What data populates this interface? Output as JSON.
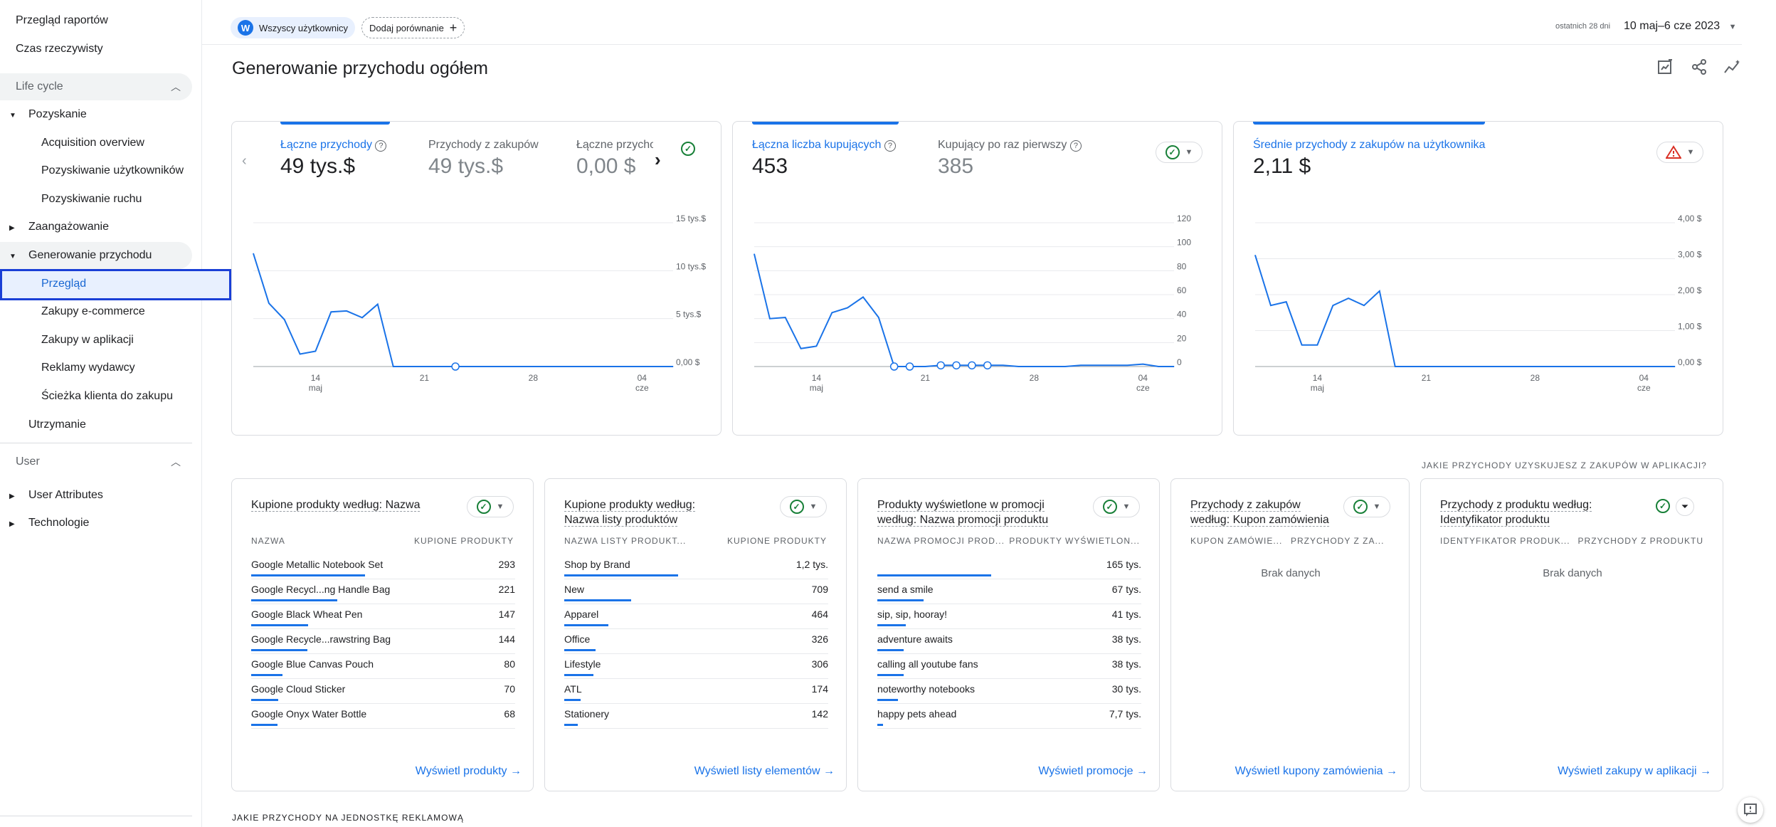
{
  "sidebar": {
    "top_items": [
      "Przegląd raportów",
      "Czas rzeczywisty"
    ],
    "lifecycle_title": "Life cycle",
    "pozyskanie": "Pozyskanie",
    "acq": [
      "Acquisition overview",
      "Pozyskiwanie użytkowników",
      "Pozyskiwanie ruchu"
    ],
    "zaangazowanie": "Zaangażowanie",
    "generowanie": "Generowanie przychodu",
    "gen_items": [
      "Przegląd",
      "Zakupy e-commerce",
      "Zakupy w aplikacji",
      "Reklamy wydawcy",
      "Ścieżka klienta do zakupu"
    ],
    "utrzymanie": "Utrzymanie",
    "user_title": "User",
    "user_attributes": "User Attributes",
    "technologie": "Technologie"
  },
  "header": {
    "avatar": "W",
    "segment": "Wszyscy użytkownicy",
    "compare": "Dodaj porównanie",
    "range_label": "ostatnich 28 dni",
    "range": "10 maj–6 cze 2023",
    "title": "Generowanie przychodu ogółem"
  },
  "card1": {
    "m1_label": "Łączne przychody",
    "m1_val": "49 tys.$",
    "m2_label": "Przychody z zakupów",
    "m2_val": "49 tys.$",
    "m3_label": "Łączne przychody",
    "m3_val": "0,00 $"
  },
  "card2": {
    "m1_label": "Łączna liczba kupujących",
    "m1_val": "453",
    "m2_label": "Kupujący po raz pierwszy",
    "m2_val": "385"
  },
  "card3": {
    "m1_label": "Średnie przychody z zakupów na użytkownika",
    "m1_val": "2,11 $"
  },
  "chart_data": [
    {
      "type": "line",
      "title": "Łączne przychody",
      "x": [
        "10 maj",
        "11",
        "12",
        "13",
        "14",
        "15",
        "16",
        "17",
        "18",
        "19",
        "20",
        "21",
        "22",
        "23",
        "24",
        "25",
        "26",
        "27",
        "28",
        "29",
        "30",
        "31",
        "01",
        "02",
        "03",
        "04",
        "05",
        "06 cze"
      ],
      "x_ticks": [
        [
          "14",
          "maj"
        ],
        [
          "21",
          ""
        ],
        [
          "28",
          ""
        ],
        [
          "04",
          "cze"
        ]
      ],
      "values": [
        11800,
        6600,
        4900,
        1300,
        1600,
        5700,
        5800,
        5100,
        6500,
        0,
        0,
        0,
        0,
        0,
        0,
        0,
        0,
        0,
        0,
        0,
        0,
        0,
        0,
        0,
        0,
        0,
        0,
        0
      ],
      "y_ticks": [
        "0,00 $",
        "5 tys.$",
        "10 tys.$",
        "15 tys.$"
      ],
      "ylim": [
        0,
        15000
      ],
      "markers": [
        13
      ]
    },
    {
      "type": "line",
      "title": "Łączna liczba kupujących",
      "x_ticks": [
        [
          "14",
          "maj"
        ],
        [
          "21",
          ""
        ],
        [
          "28",
          ""
        ],
        [
          "04",
          "cze"
        ]
      ],
      "values": [
        94,
        40,
        41,
        15,
        17,
        45,
        49,
        58,
        41,
        0,
        0,
        0,
        1,
        1,
        1,
        1,
        1,
        0,
        0,
        0,
        0,
        1,
        1,
        1,
        1,
        2,
        0,
        0
      ],
      "y_ticks": [
        "0",
        "20",
        "40",
        "60",
        "80",
        "100",
        "120"
      ],
      "ylim": [
        0,
        120
      ],
      "markers": [
        9,
        10,
        12,
        13,
        14,
        15
      ]
    },
    {
      "type": "line",
      "title": "Średnie przychody z zakupów na użytkownika",
      "x_ticks": [
        [
          "14",
          "maj"
        ],
        [
          "21",
          ""
        ],
        [
          "28",
          ""
        ],
        [
          "04",
          "cze"
        ]
      ],
      "values": [
        3.1,
        1.7,
        1.8,
        0.6,
        0.6,
        1.7,
        1.9,
        1.7,
        2.1,
        0,
        0,
        0,
        0,
        0,
        0,
        0,
        0,
        0,
        0,
        0,
        0,
        0,
        0,
        0,
        0,
        0,
        0,
        0
      ],
      "y_ticks": [
        "0,00 $",
        "1,00 $",
        "2,00 $",
        "3,00 $",
        "4,00 $"
      ],
      "ylim": [
        0,
        4
      ],
      "markers": []
    }
  ],
  "tables": {
    "products": {
      "title": "Kupione produkty według: Nazwa",
      "col1": "NAZWA",
      "col2": "KUPIONE PRODUKTY",
      "rows": [
        {
          "k": "Google Metallic Notebook Set",
          "v": "293",
          "f": 1.0
        },
        {
          "k": "Google Recycl...ng Handle Bag",
          "v": "221",
          "f": 0.754
        },
        {
          "k": "Google Black Wheat Pen",
          "v": "147",
          "f": 0.502
        },
        {
          "k": "Google Recycle...rawstring Bag",
          "v": "144",
          "f": 0.491
        },
        {
          "k": "Google Blue Canvas Pouch",
          "v": "80",
          "f": 0.273
        },
        {
          "k": "Google Cloud Sticker",
          "v": "70",
          "f": 0.239
        },
        {
          "k": "Google Onyx Water Bottle",
          "v": "68",
          "f": 0.232
        }
      ],
      "link": "Wyświetl produkty"
    },
    "lists": {
      "title1": "Kupione produkty według:",
      "title2": "Nazwa listy produktów",
      "col1": "NAZWA LISTY PRODUKT...",
      "col2": "KUPIONE PRODUKTY",
      "rows": [
        {
          "k": "Shop by Brand",
          "v": "1,2 tys.",
          "f": 1.0
        },
        {
          "k": "New",
          "v": "709",
          "f": 0.59
        },
        {
          "k": "Apparel",
          "v": "464",
          "f": 0.387
        },
        {
          "k": "Office",
          "v": "326",
          "f": 0.272
        },
        {
          "k": "Lifestyle",
          "v": "306",
          "f": 0.255
        },
        {
          "k": "ATL",
          "v": "174",
          "f": 0.145
        },
        {
          "k": "Stationery",
          "v": "142",
          "f": 0.118
        }
      ],
      "link": "Wyświetl listy elementów"
    },
    "promos": {
      "title1": "Produkty wyświetlone w promocji",
      "title2": "według: Nazwa promocji produktu",
      "col1": "NAZWA PROMOCJI PROD...",
      "col2": "PRODUKTY WYŚWIETLON...",
      "rows": [
        {
          "k": "",
          "v": "165 tys.",
          "f": 1.0
        },
        {
          "k": "send a smile",
          "v": "67 tys.",
          "f": 0.406
        },
        {
          "k": "sip, sip, hooray!",
          "v": "41 tys.",
          "f": 0.248
        },
        {
          "k": "adventure awaits",
          "v": "38 tys.",
          "f": 0.23
        },
        {
          "k": "calling all youtube fans",
          "v": "38 tys.",
          "f": 0.23
        },
        {
          "k": "noteworthy notebooks",
          "v": "30 tys.",
          "f": 0.182
        },
        {
          "k": "happy pets ahead",
          "v": "7,7 tys.",
          "f": 0.047
        }
      ],
      "link": "Wyświetl promocje"
    },
    "coupons": {
      "title1": "Przychody z zakupów",
      "title2": "według: Kupon zamówienia",
      "col1": "KUPON ZAMÓWIE...",
      "col2": "PRZYCHODY Z ZA...",
      "empty": "Brak danych",
      "link": "Wyświetl kupony zamówienia"
    },
    "inapp": {
      "heading": "JAKIE PRZYCHODY UZYSKUJESZ Z ZAKUPÓW W APLIKACJI?",
      "title1": "Przychody z produktu według:",
      "title2": "Identyfikator produktu",
      "col1": "IDENTYFIKATOR PRODUK...",
      "col2": "PRZYCHODY Z PRODUKTU",
      "empty": "Brak danych",
      "link": "Wyświetl zakupy w aplikacji"
    }
  },
  "bottom_heading": "JAKIE PRZYCHODY NA JEDNOSTKĘ REKLAMOWĄ",
  "colors": {
    "accent": "#1a73e8",
    "ok": "#188038",
    "warn": "#d93025",
    "highlight": "#1a3fd6"
  }
}
